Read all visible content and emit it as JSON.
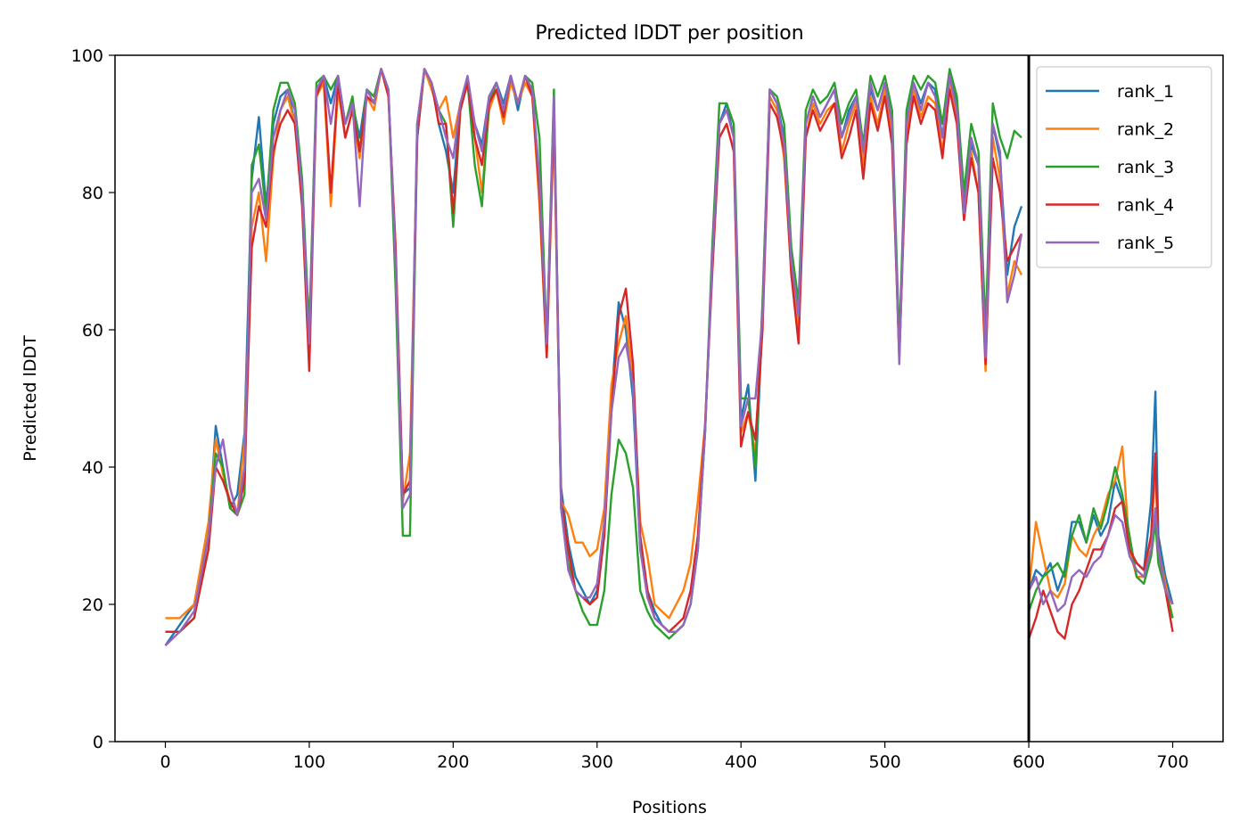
{
  "chart_data": {
    "type": "line",
    "title": "Predicted lDDT per position",
    "xlabel": "Positions",
    "ylabel": "Predicted lDDT",
    "xlim": [
      -35,
      735
    ],
    "ylim": [
      0,
      100
    ],
    "xticks": [
      0,
      100,
      200,
      300,
      400,
      500,
      600,
      700
    ],
    "yticks": [
      0,
      20,
      40,
      60,
      80,
      100
    ],
    "vline": 600,
    "grid": false,
    "legend_position": "top-right",
    "x": [
      0,
      10,
      20,
      30,
      35,
      40,
      45,
      50,
      55,
      60,
      65,
      70,
      75,
      80,
      85,
      90,
      95,
      100,
      105,
      110,
      115,
      120,
      125,
      130,
      135,
      140,
      145,
      150,
      155,
      160,
      165,
      170,
      175,
      180,
      185,
      190,
      195,
      200,
      205,
      210,
      215,
      220,
      225,
      230,
      235,
      240,
      245,
      250,
      255,
      260,
      265,
      270,
      275,
      280,
      285,
      290,
      295,
      300,
      305,
      310,
      315,
      320,
      325,
      330,
      335,
      340,
      345,
      350,
      355,
      360,
      365,
      370,
      375,
      380,
      385,
      390,
      395,
      400,
      405,
      410,
      415,
      420,
      425,
      430,
      435,
      440,
      445,
      450,
      455,
      460,
      465,
      470,
      475,
      480,
      485,
      490,
      495,
      500,
      505,
      510,
      515,
      520,
      525,
      530,
      535,
      540,
      545,
      550,
      555,
      560,
      565,
      570,
      575,
      580,
      585,
      590,
      595,
      600,
      605,
      610,
      615,
      620,
      625,
      630,
      635,
      640,
      645,
      650,
      655,
      660,
      665,
      670,
      675,
      680,
      685,
      688,
      690,
      695,
      700
    ],
    "series": [
      {
        "name": "rank_1",
        "color": "#1f77b4",
        "values": [
          14,
          17,
          20,
          30,
          46,
          40,
          34,
          36,
          45,
          82,
          91,
          78,
          90,
          94,
          95,
          90,
          80,
          58,
          95,
          97,
          93,
          97,
          90,
          93,
          88,
          95,
          94,
          98,
          95,
          70,
          36,
          37,
          90,
          98,
          96,
          90,
          86,
          80,
          93,
          96,
          90,
          87,
          94,
          96,
          93,
          97,
          92,
          97,
          95,
          80,
          57,
          92,
          37,
          29,
          24,
          22,
          20,
          22,
          32,
          50,
          64,
          60,
          50,
          28,
          22,
          19,
          17,
          16,
          16,
          17,
          20,
          28,
          45,
          70,
          90,
          93,
          88,
          47,
          52,
          38,
          62,
          95,
          93,
          88,
          70,
          63,
          90,
          94,
          91,
          93,
          95,
          88,
          92,
          94,
          85,
          95,
          92,
          96,
          90,
          57,
          90,
          96,
          93,
          96,
          95,
          88,
          97,
          93,
          78,
          87,
          84,
          58,
          90,
          85,
          68,
          75,
          78,
          22,
          25,
          24,
          26,
          22,
          25,
          32,
          32,
          29,
          33,
          30,
          32,
          38,
          35,
          28,
          26,
          25,
          35,
          51,
          30,
          24,
          20
        ]
      },
      {
        "name": "rank_2",
        "color": "#ff7f0e",
        "values": [
          18,
          18,
          20,
          32,
          44,
          39,
          35,
          33,
          44,
          75,
          80,
          70,
          85,
          92,
          94,
          90,
          80,
          60,
          94,
          96,
          78,
          95,
          88,
          92,
          85,
          94,
          92,
          98,
          94,
          72,
          35,
          42,
          88,
          98,
          95,
          92,
          94,
          88,
          93,
          96,
          88,
          80,
          92,
          95,
          90,
          96,
          93,
          96,
          94,
          78,
          56,
          90,
          35,
          33,
          29,
          29,
          27,
          28,
          34,
          52,
          58,
          62,
          52,
          32,
          27,
          20,
          19,
          18,
          20,
          22,
          26,
          35,
          46,
          70,
          88,
          90,
          86,
          45,
          48,
          42,
          64,
          94,
          92,
          85,
          68,
          60,
          88,
          93,
          90,
          92,
          93,
          86,
          90,
          93,
          84,
          94,
          90,
          95,
          88,
          56,
          88,
          95,
          91,
          94,
          93,
          86,
          96,
          91,
          76,
          86,
          80,
          54,
          88,
          82,
          65,
          70,
          68,
          22,
          32,
          27,
          22,
          21,
          23,
          30,
          28,
          27,
          30,
          32,
          36,
          38,
          43,
          28,
          24,
          24,
          30,
          40,
          28,
          23,
          18
        ]
      },
      {
        "name": "rank_3",
        "color": "#2ca02c",
        "values": [
          16,
          16,
          18,
          30,
          42,
          40,
          34,
          33,
          36,
          84,
          87,
          77,
          92,
          96,
          96,
          93,
          82,
          60,
          96,
          97,
          95,
          97,
          90,
          94,
          86,
          95,
          94,
          98,
          95,
          66,
          30,
          30,
          88,
          98,
          96,
          92,
          90,
          75,
          92,
          96,
          84,
          78,
          93,
          96,
          92,
          97,
          93,
          97,
          96,
          88,
          58,
          95,
          34,
          26,
          22,
          19,
          17,
          17,
          22,
          36,
          44,
          42,
          37,
          22,
          19,
          17,
          16,
          15,
          16,
          17,
          20,
          28,
          45,
          72,
          93,
          93,
          90,
          50,
          50,
          40,
          64,
          95,
          94,
          90,
          72,
          64,
          92,
          95,
          93,
          94,
          96,
          90,
          93,
          95,
          87,
          97,
          94,
          97,
          92,
          58,
          92,
          97,
          95,
          97,
          96,
          90,
          98,
          94,
          80,
          90,
          86,
          60,
          93,
          88,
          85,
          89,
          88,
          19,
          22,
          24,
          25,
          26,
          24,
          30,
          33,
          29,
          34,
          31,
          35,
          40,
          36,
          30,
          24,
          23,
          27,
          32,
          26,
          22,
          18
        ]
      },
      {
        "name": "rank_4",
        "color": "#d62728",
        "values": [
          16,
          16,
          18,
          28,
          40,
          38,
          35,
          33,
          38,
          72,
          78,
          75,
          86,
          90,
          92,
          90,
          78,
          54,
          94,
          97,
          80,
          96,
          88,
          92,
          86,
          94,
          93,
          98,
          94,
          72,
          36,
          38,
          88,
          98,
          96,
          90,
          90,
          77,
          92,
          96,
          88,
          84,
          93,
          95,
          91,
          97,
          93,
          97,
          94,
          80,
          56,
          92,
          35,
          28,
          22,
          21,
          20,
          21,
          30,
          48,
          62,
          66,
          55,
          30,
          22,
          18,
          17,
          16,
          17,
          18,
          22,
          30,
          46,
          68,
          88,
          90,
          86,
          43,
          48,
          44,
          60,
          93,
          91,
          86,
          68,
          58,
          88,
          92,
          89,
          91,
          93,
          85,
          88,
          92,
          82,
          93,
          89,
          94,
          87,
          56,
          87,
          94,
          90,
          93,
          92,
          85,
          95,
          90,
          76,
          85,
          80,
          55,
          85,
          80,
          70,
          72,
          74,
          15,
          18,
          22,
          19,
          16,
          15,
          20,
          22,
          25,
          28,
          28,
          30,
          34,
          35,
          28,
          26,
          25,
          30,
          42,
          28,
          22,
          16
        ]
      },
      {
        "name": "rank_5",
        "color": "#9467bd",
        "values": [
          14,
          16,
          19,
          30,
          40,
          44,
          37,
          33,
          40,
          80,
          82,
          76,
          88,
          92,
          95,
          92,
          80,
          58,
          95,
          97,
          90,
          97,
          90,
          93,
          78,
          95,
          93,
          98,
          95,
          70,
          34,
          36,
          90,
          98,
          96,
          92,
          88,
          85,
          93,
          97,
          90,
          86,
          94,
          96,
          92,
          97,
          93,
          97,
          95,
          82,
          58,
          94,
          34,
          25,
          22,
          21,
          21,
          23,
          32,
          48,
          56,
          58,
          52,
          28,
          21,
          18,
          17,
          16,
          16,
          17,
          20,
          28,
          45,
          70,
          90,
          92,
          88,
          46,
          50,
          50,
          62,
          95,
          93,
          87,
          70,
          62,
          90,
          94,
          91,
          93,
          95,
          88,
          91,
          94,
          86,
          96,
          92,
          96,
          90,
          55,
          90,
          96,
          92,
          96,
          94,
          88,
          97,
          92,
          77,
          88,
          84,
          56,
          90,
          86,
          64,
          68,
          74,
          22,
          24,
          20,
          22,
          19,
          20,
          24,
          25,
          24,
          26,
          27,
          30,
          33,
          32,
          27,
          25,
          24,
          28,
          34,
          28,
          22,
          20
        ]
      }
    ]
  }
}
